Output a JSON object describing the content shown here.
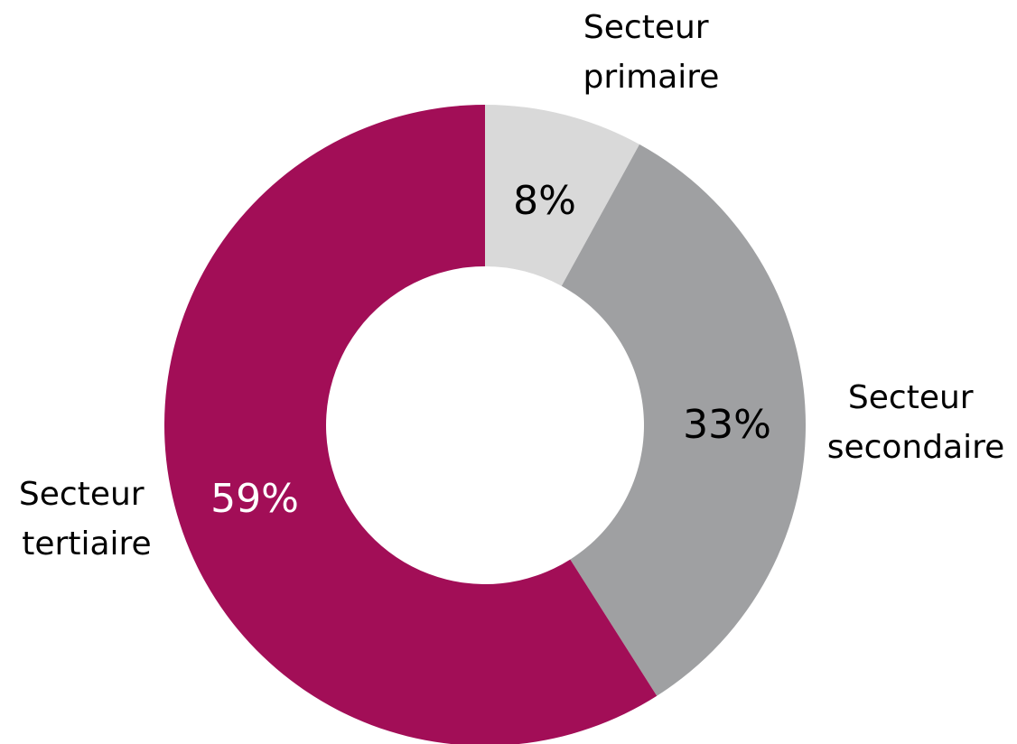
{
  "chart_data": {
    "type": "pie",
    "style": "donut",
    "slices": [
      {
        "label_lines": [
          "Secteur",
          "primaire"
        ],
        "value": 8,
        "value_label": "8%",
        "color": "#d9d9d9",
        "value_label_color": "#000000"
      },
      {
        "label_lines": [
          "Secteur",
          "secondaire"
        ],
        "value": 33,
        "value_label": "33%",
        "color": "#9fa0a2",
        "value_label_color": "#000000"
      },
      {
        "label_lines": [
          "Secteur",
          "tertiaire"
        ],
        "value": 59,
        "value_label": "59%",
        "color": "#a20e57",
        "value_label_color": "#ffffff"
      }
    ],
    "start": "top",
    "direction": "clockwise"
  }
}
